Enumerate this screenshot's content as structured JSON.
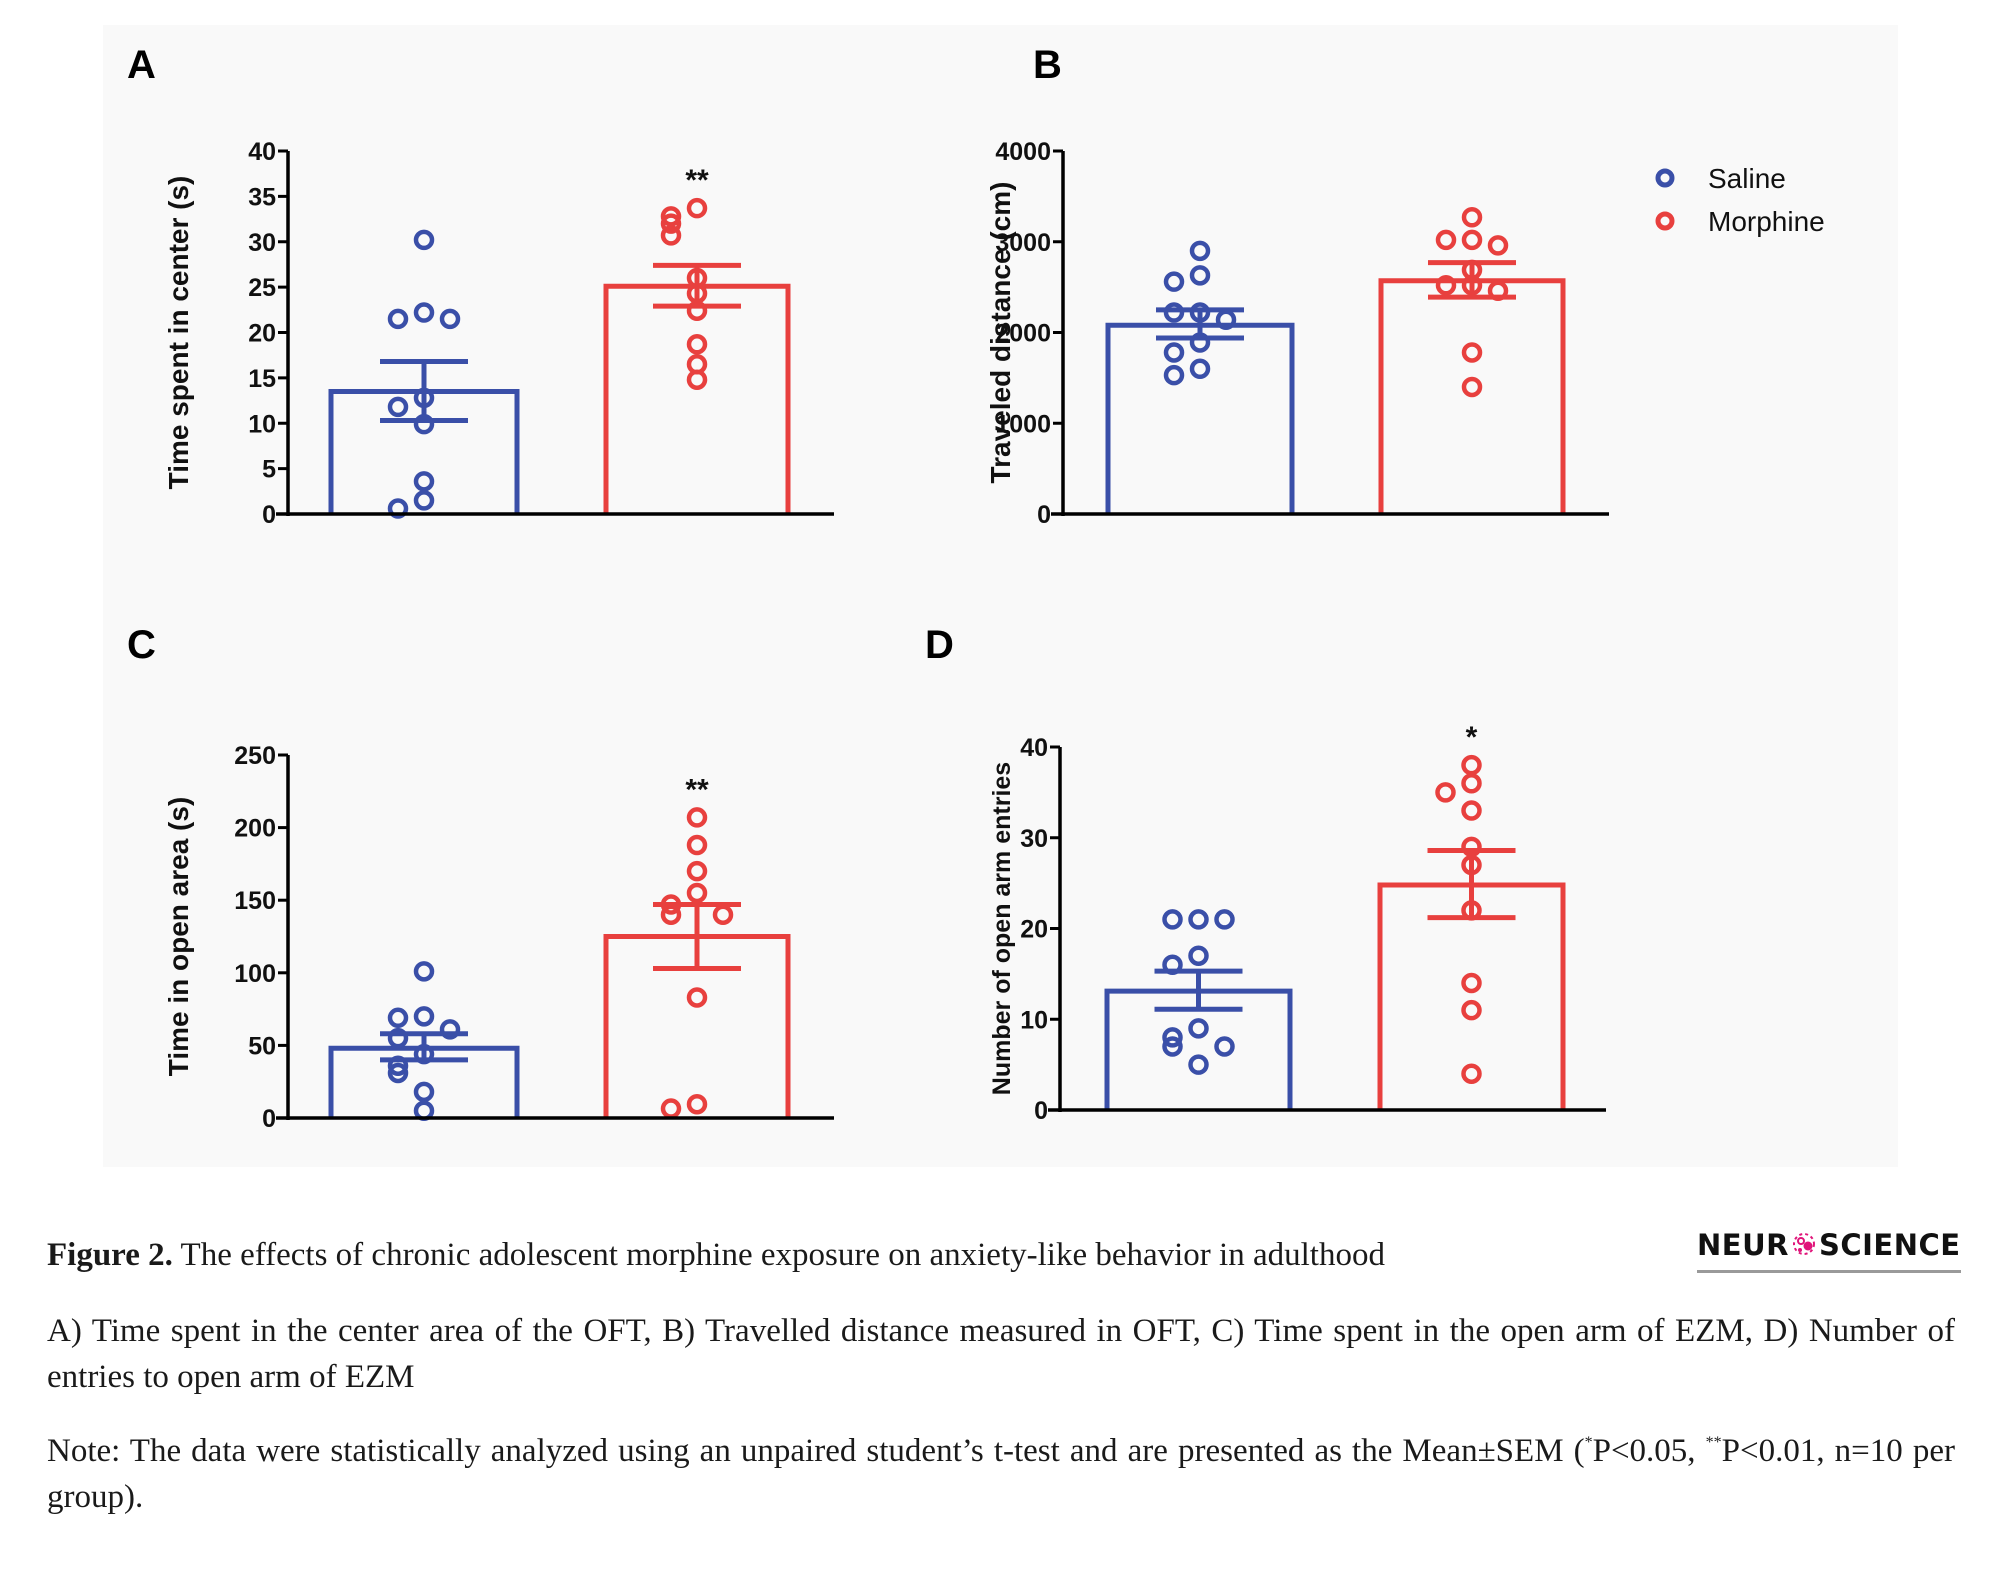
{
  "figure": {
    "panel_letters": [
      "A",
      "B",
      "C",
      "D"
    ],
    "legend": [
      {
        "label": "Saline",
        "color": "#3a4fa8"
      },
      {
        "label": "Morphine",
        "color": "#e8403e"
      }
    ]
  },
  "caption": {
    "title_bold": "Figure 2.",
    "title_text": " The effects of chronic adolescent morphine exposure on anxiety-like behavior in adulthood",
    "description": "A) Time spent in the center area of the OFT, B) Travelled distance measured in OFT, C) Time spent in the open arm of EZM, D) Number of entries to open arm of EZM",
    "note_prefix": "Note: The data were statistically analyzed using an unpaired student’s t-test and are presented as the Mean±SEM (",
    "note_star1": "*",
    "note_mid1": "P<0.05, ",
    "note_star2": "**",
    "note_suffix": "P<0.01, n=10 per group)."
  },
  "logo": {
    "left": "NEUR",
    "right": "SCIENCE",
    "accent": "#e0157a"
  },
  "chart_data": [
    {
      "panel": "A",
      "type": "bar",
      "title": "",
      "ylabel": "Time spent in center (s)",
      "xlabel": "",
      "ylim": [
        0,
        40
      ],
      "yticks": [
        0,
        5,
        10,
        15,
        20,
        25,
        30,
        35,
        40
      ],
      "categories": [
        "Saline",
        "Morphine"
      ],
      "significance": "**",
      "series": [
        {
          "name": "Saline",
          "mean": 13.5,
          "sem_upper": 16.8,
          "sem_lower": 10.3,
          "points": [
            30.2,
            22.2,
            21.5,
            21.5,
            12.8,
            11.8,
            9.9,
            3.6,
            1.5,
            0.6
          ]
        },
        {
          "name": "Morphine",
          "mean": 25.1,
          "sem_upper": 27.4,
          "sem_lower": 22.9,
          "points": [
            33.7,
            32.8,
            32.0,
            30.7,
            26.0,
            24.3,
            22.4,
            18.7,
            16.5,
            14.8
          ]
        }
      ]
    },
    {
      "panel": "B",
      "type": "bar",
      "title": "",
      "ylabel": "Traveled distance (cm)",
      "xlabel": "",
      "ylim": [
        0,
        4000
      ],
      "yticks": [
        0,
        1000,
        2000,
        3000,
        4000
      ],
      "categories": [
        "Saline",
        "Morphine"
      ],
      "significance": "",
      "series": [
        {
          "name": "Saline",
          "mean": 2080,
          "sem_upper": 2250,
          "sem_lower": 1940,
          "points": [
            2900,
            2630,
            2560,
            2220,
            2220,
            2140,
            1890,
            1780,
            1600,
            1530
          ]
        },
        {
          "name": "Morphine",
          "mean": 2570,
          "sem_upper": 2770,
          "sem_lower": 2390,
          "points": [
            3270,
            3020,
            3020,
            2960,
            2690,
            2520,
            2520,
            2460,
            1780,
            1400
          ]
        }
      ]
    },
    {
      "panel": "C",
      "type": "bar",
      "title": "",
      "ylabel": "Time in open area (s)",
      "xlabel": "",
      "ylim": [
        0,
        250
      ],
      "yticks": [
        0,
        50,
        100,
        150,
        200,
        250
      ],
      "categories": [
        "Saline",
        "Morphine"
      ],
      "significance": "**",
      "series": [
        {
          "name": "Saline",
          "mean": 48,
          "sem_upper": 58,
          "sem_lower": 40,
          "points": [
            101,
            70,
            69,
            61,
            55,
            44,
            36,
            31,
            18,
            5
          ]
        },
        {
          "name": "Morphine",
          "mean": 125,
          "sem_upper": 147,
          "sem_lower": 103,
          "points": [
            207,
            188,
            170,
            155,
            147,
            140,
            140,
            83,
            9.5,
            6.5
          ]
        }
      ]
    },
    {
      "panel": "D",
      "type": "bar",
      "title": "",
      "ylabel": "Number of open arm entries",
      "xlabel": "",
      "ylim": [
        0,
        40
      ],
      "yticks": [
        0,
        10,
        20,
        30,
        40
      ],
      "categories": [
        "Saline",
        "Morphine"
      ],
      "significance": "*",
      "series": [
        {
          "name": "Saline",
          "mean": 13.1,
          "sem_upper": 15.3,
          "sem_lower": 11.1,
          "points": [
            21,
            21,
            21,
            17,
            16,
            9,
            8,
            7,
            7,
            5
          ]
        },
        {
          "name": "Morphine",
          "mean": 24.8,
          "sem_upper": 28.6,
          "sem_lower": 21.2,
          "points": [
            38,
            36,
            35,
            33,
            29,
            27,
            22,
            14,
            11,
            4
          ]
        }
      ]
    }
  ]
}
